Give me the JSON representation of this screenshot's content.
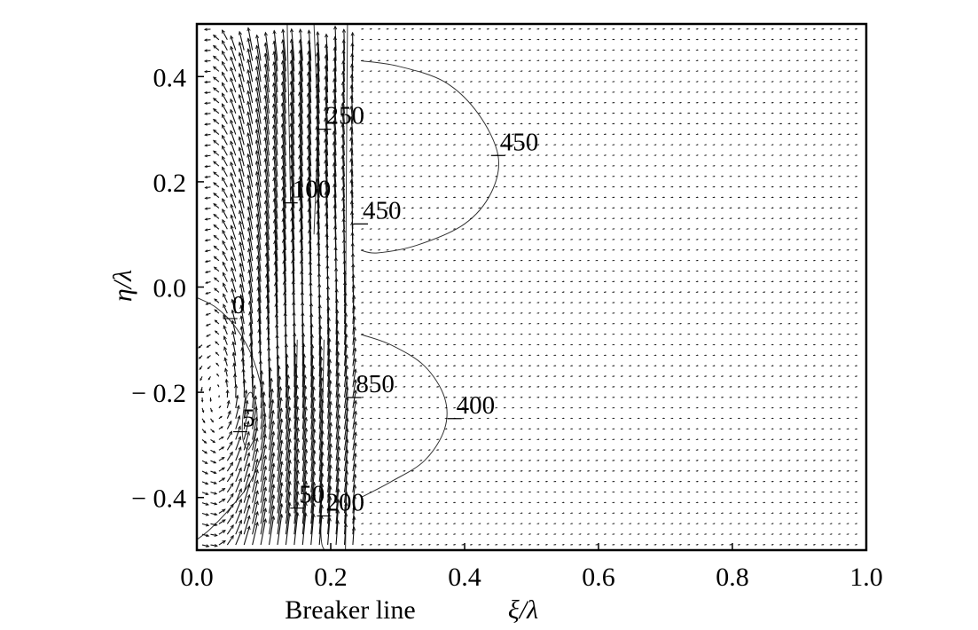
{
  "chart_data": {
    "type": "quiver-contour",
    "title": "",
    "xlabel": "ξ/λ",
    "ylabel": "η/λ",
    "xlim": [
      0.0,
      1.0
    ],
    "ylim": [
      -0.5,
      0.5
    ],
    "x_ticks": [
      {
        "value": 0.0,
        "label": "0.0"
      },
      {
        "value": 0.2,
        "label": "0.2"
      },
      {
        "value": 0.4,
        "label": "0.4"
      },
      {
        "value": 0.6,
        "label": "0.6"
      },
      {
        "value": 0.8,
        "label": "0.8"
      },
      {
        "value": 1.0,
        "label": "1.0"
      }
    ],
    "y_ticks": [
      {
        "value": 0.4,
        "label": "0.4"
      },
      {
        "value": 0.2,
        "label": "0.2"
      },
      {
        "value": 0.0,
        "label": "0.0"
      },
      {
        "value": -0.2,
        "label": "− 0.2"
      },
      {
        "value": -0.4,
        "label": "− 0.4"
      }
    ],
    "annotation": {
      "text": "Breaker line",
      "x": 0.24
    },
    "contour_labels": [
      {
        "text": "250",
        "x": 0.19,
        "y": 0.3
      },
      {
        "text": "450",
        "x": 0.45,
        "y": 0.25
      },
      {
        "text": "100",
        "x": 0.14,
        "y": 0.16
      },
      {
        "text": "450",
        "x": 0.245,
        "y": 0.12
      },
      {
        "text": "0",
        "x": 0.05,
        "y": -0.06
      },
      {
        "text": "850",
        "x": 0.235,
        "y": -0.21
      },
      {
        "text": "400",
        "x": 0.385,
        "y": -0.25
      },
      {
        "text": "5",
        "x": 0.065,
        "y": -0.275
      },
      {
        "text": "50",
        "x": 0.15,
        "y": -0.42
      },
      {
        "text": "200",
        "x": 0.19,
        "y": -0.435
      }
    ],
    "contour_lines": [
      {
        "level": "450",
        "points": [
          [
            0.245,
            0.43
          ],
          [
            0.3,
            0.42
          ],
          [
            0.37,
            0.39
          ],
          [
            0.42,
            0.33
          ],
          [
            0.45,
            0.25
          ],
          [
            0.44,
            0.18
          ],
          [
            0.4,
            0.12
          ],
          [
            0.33,
            0.08
          ],
          [
            0.27,
            0.065
          ],
          [
            0.245,
            0.07
          ]
        ]
      },
      {
        "level": "400",
        "points": [
          [
            0.245,
            -0.09
          ],
          [
            0.29,
            -0.11
          ],
          [
            0.34,
            -0.15
          ],
          [
            0.37,
            -0.21
          ],
          [
            0.37,
            -0.27
          ],
          [
            0.34,
            -0.33
          ],
          [
            0.29,
            -0.37
          ],
          [
            0.245,
            -0.4
          ]
        ]
      },
      {
        "level": "0",
        "points": [
          [
            0.0,
            -0.02
          ],
          [
            0.03,
            -0.04
          ],
          [
            0.06,
            -0.08
          ],
          [
            0.085,
            -0.14
          ],
          [
            0.1,
            -0.22
          ],
          [
            0.1,
            -0.3
          ],
          [
            0.08,
            -0.37
          ],
          [
            0.05,
            -0.42
          ],
          [
            0.02,
            -0.46
          ],
          [
            0.0,
            -0.48
          ]
        ]
      },
      {
        "level": "5",
        "points": [
          [
            0.075,
            -0.31
          ],
          [
            0.069,
            -0.29
          ],
          [
            0.068,
            -0.26
          ],
          [
            0.072,
            -0.22
          ],
          [
            0.08,
            -0.2
          ],
          [
            0.088,
            -0.22
          ],
          [
            0.09,
            -0.26
          ],
          [
            0.085,
            -0.29
          ],
          [
            0.077,
            -0.31
          ]
        ]
      },
      {
        "level": "100",
        "points": [
          [
            0.135,
            0.5
          ],
          [
            0.14,
            0.16
          ]
        ]
      },
      {
        "level": "250",
        "points": [
          [
            0.175,
            0.5
          ],
          [
            0.18,
            0.3
          ],
          [
            0.175,
            0.1
          ]
        ]
      },
      {
        "level": "850",
        "points": [
          [
            0.225,
            0.5
          ],
          [
            0.222,
            -0.1
          ],
          [
            0.225,
            -0.21
          ],
          [
            0.222,
            -0.5
          ]
        ]
      },
      {
        "level": "50",
        "points": [
          [
            0.15,
            -0.1
          ],
          [
            0.145,
            -0.42
          ]
        ]
      },
      {
        "level": "200",
        "points": [
          [
            0.19,
            -0.1
          ],
          [
            0.185,
            -0.44
          ],
          [
            0.19,
            -0.5
          ]
        ]
      }
    ],
    "vector_field": {
      "grid_dx": 0.0125,
      "grid_dy": 0.0125,
      "surf_zone_xmax": 0.245,
      "description_of_flow": "strong longshore current in surf zone (0.12-0.245) with circulation cell near shore; weak uniform onshore vectors offshore of breaker line"
    },
    "grid": false,
    "legend": "none"
  }
}
